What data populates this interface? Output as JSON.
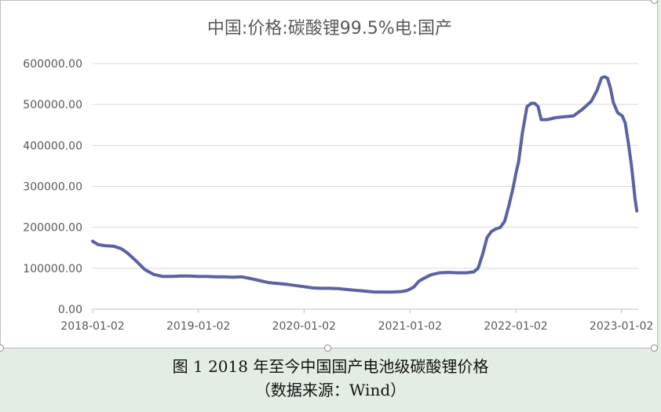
{
  "caption": {
    "line1": "图 1 2018 年至今中国国产电池级碳酸锂价格",
    "line2": "（数据来源：Wind）"
  },
  "colors": {
    "series": "#5b62a3",
    "grid": "#d9d9d9",
    "text": "#595959"
  },
  "chart_data": {
    "type": "line",
    "title": "中国:价格:碳酸锂99.5%电:国产",
    "xlabel": "",
    "ylabel": "",
    "ylim": [
      0,
      600000
    ],
    "y_ticks": [
      "0.00",
      "100000.00",
      "200000.00",
      "300000.00",
      "400000.00",
      "500000.00",
      "600000.00"
    ],
    "x_ticks": [
      "2018-01-02",
      "2019-01-02",
      "2020-01-02",
      "2021-01-02",
      "2022-01-02",
      "2023-01-02"
    ],
    "grid": true,
    "legend": "none",
    "series": [
      {
        "x": [
          "2018-01-02",
          "2018-01-20",
          "2018-02-15",
          "2018-03-15",
          "2018-04-10",
          "2018-05-01",
          "2018-06-01",
          "2018-07-01",
          "2018-08-01",
          "2018-09-01",
          "2018-10-01",
          "2018-11-01",
          "2018-12-01",
          "2019-01-02",
          "2019-02-01",
          "2019-03-01",
          "2019-04-01",
          "2019-05-01",
          "2019-06-01",
          "2019-07-01",
          "2019-08-01",
          "2019-09-01",
          "2019-10-01",
          "2019-11-01",
          "2019-12-01",
          "2020-01-02",
          "2020-02-01",
          "2020-03-01",
          "2020-04-01",
          "2020-05-01",
          "2020-06-01",
          "2020-07-01",
          "2020-08-01",
          "2020-09-01",
          "2020-10-01",
          "2020-11-01",
          "2020-12-01",
          "2020-12-20",
          "2021-01-02",
          "2021-01-15",
          "2021-02-01",
          "2021-02-20",
          "2021-03-15",
          "2021-04-15",
          "2021-05-15",
          "2021-06-15",
          "2021-07-15",
          "2021-08-10",
          "2021-08-25",
          "2021-09-10",
          "2021-09-25",
          "2021-10-10",
          "2021-10-25",
          "2021-11-10",
          "2021-11-25",
          "2021-12-10",
          "2021-12-25",
          "2022-01-02",
          "2022-01-12",
          "2022-01-25",
          "2022-02-10",
          "2022-02-25",
          "2022-03-08",
          "2022-03-20",
          "2022-03-31",
          "2022-04-05",
          "2022-04-20",
          "2022-05-20",
          "2022-06-20",
          "2022-07-20",
          "2022-08-20",
          "2022-09-20",
          "2022-10-10",
          "2022-10-25",
          "2022-11-05",
          "2022-11-15",
          "2022-11-25",
          "2022-12-05",
          "2022-12-20",
          "2023-01-05",
          "2023-01-15",
          "2023-01-25",
          "2023-02-05",
          "2023-02-12",
          "2023-02-18",
          "2023-02-24"
        ],
        "values": [
          166000,
          158000,
          155000,
          154000,
          148000,
          138000,
          118000,
          97000,
          85000,
          80000,
          80000,
          81000,
          81000,
          80000,
          80000,
          79000,
          79000,
          78000,
          79000,
          75000,
          70000,
          65000,
          63000,
          61000,
          58000,
          55000,
          52000,
          51000,
          51000,
          50000,
          48000,
          46000,
          44000,
          42000,
          42000,
          42000,
          43000,
          45000,
          49000,
          54000,
          68000,
          76000,
          84000,
          89000,
          90000,
          89000,
          89000,
          91000,
          100000,
          135000,
          175000,
          190000,
          196000,
          200000,
          215000,
          255000,
          300000,
          330000,
          360000,
          430000,
          495000,
          503000,
          503000,
          495000,
          463000,
          463000,
          463000,
          468000,
          470000,
          472000,
          488000,
          508000,
          535000,
          565000,
          568000,
          564000,
          540000,
          505000,
          480000,
          472000,
          455000,
          410000,
          355000,
          310000,
          270000,
          240000
        ]
      }
    ]
  }
}
